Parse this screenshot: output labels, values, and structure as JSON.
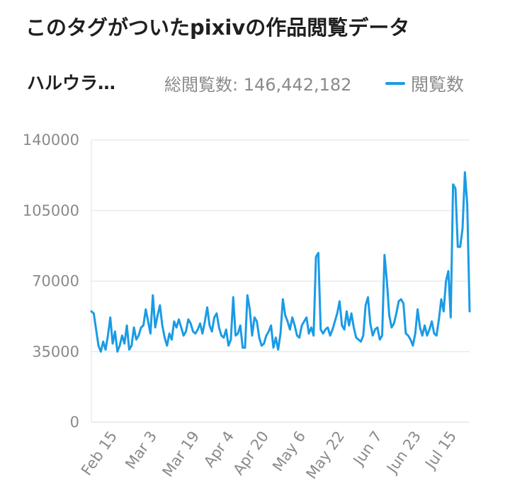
{
  "header": {
    "title": "このタグがついたpixivの作品閲覧データ"
  },
  "summary": {
    "tag_name": "ハルウラ…",
    "total_label": "総閲覧数: 146,442,182",
    "legend_label": "閲覧数"
  },
  "colors": {
    "series": "#1a9be6",
    "grid": "#e6e6e6",
    "axis_text": "#8a8a8a"
  },
  "chart_data": {
    "type": "line",
    "ylim": [
      0,
      140000
    ],
    "yticks": [
      "0",
      "35000",
      "70000",
      "105000",
      "140000"
    ],
    "xtick_labels": [
      "Feb 15",
      "Mar 3",
      "Mar 19",
      "Apr 4",
      "Apr 20",
      "May 6",
      "May 22",
      "Jun 7",
      "Jun 23",
      "Jul 15"
    ],
    "grid": true,
    "legend_placement": "top-right",
    "series": [
      {
        "name": "閲覧数",
        "values": [
          55000,
          54000,
          46000,
          38000,
          35000,
          40000,
          36000,
          43000,
          52000,
          39000,
          45000,
          35000,
          38000,
          43000,
          39000,
          48000,
          36000,
          38000,
          47000,
          41000,
          43000,
          47000,
          48000,
          56000,
          50000,
          44000,
          63000,
          47000,
          53000,
          58000,
          48000,
          42000,
          38000,
          44000,
          41000,
          50000,
          47000,
          51000,
          47000,
          43000,
          45000,
          51000,
          49000,
          45000,
          44000,
          46000,
          49000,
          44000,
          50000,
          57000,
          48000,
          45000,
          52000,
          54000,
          47000,
          43000,
          42000,
          46000,
          38000,
          41000,
          62000,
          43000,
          44000,
          48000,
          37000,
          37000,
          63000,
          56000,
          43000,
          52000,
          50000,
          42000,
          38000,
          39000,
          43000,
          45000,
          48000,
          37000,
          42000,
          36000,
          44000,
          61000,
          53000,
          50000,
          46000,
          52000,
          48000,
          43000,
          42000,
          48000,
          50000,
          52000,
          44000,
          47000,
          43000,
          82000,
          84000,
          46000,
          44000,
          46000,
          47000,
          43000,
          46000,
          50000,
          54000,
          60000,
          48000,
          46000,
          55000,
          48000,
          54000,
          47000,
          42000,
          41000,
          40000,
          43000,
          58000,
          62000,
          49000,
          43000,
          46000,
          47000,
          41000,
          43000,
          83000,
          70000,
          53000,
          47000,
          49000,
          54000,
          60000,
          61000,
          59000,
          44000,
          43000,
          41000,
          38000,
          44000,
          56000,
          47000,
          43000,
          48000,
          43000,
          46000,
          50000,
          44000,
          43000,
          51000,
          61000,
          55000,
          70000,
          75000,
          52000,
          118000,
          116000,
          87000,
          87000,
          96000,
          124000,
          108000,
          55000
        ]
      }
    ]
  }
}
